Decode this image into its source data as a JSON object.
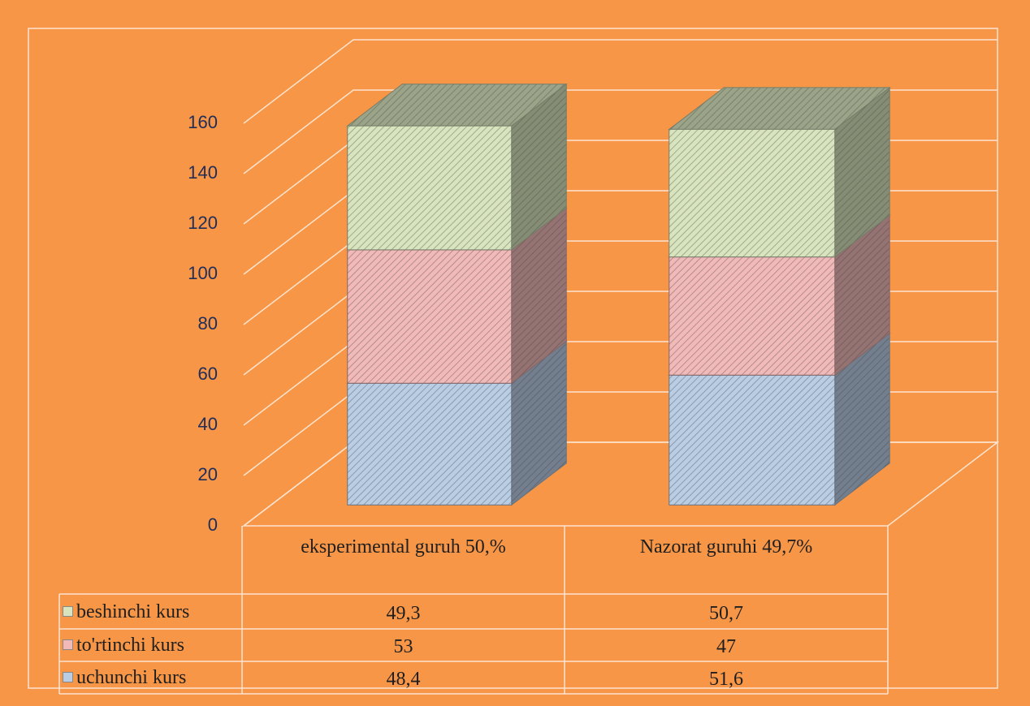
{
  "chart_data": {
    "type": "stacked-bar-3d",
    "categories": [
      "eksperimental guruh 50,%",
      "Nazorat guruhi 49,7%"
    ],
    "series": [
      {
        "name": "uchunchi kurs",
        "color": "#b9cde5",
        "values": [
          48.4,
          51.6
        ],
        "value_labels": [
          "48,4",
          "51,6"
        ]
      },
      {
        "name": "to'rtinchi kurs",
        "color": "#f2b9b9",
        "values": [
          53,
          47
        ],
        "value_labels": [
          "53",
          "47"
        ]
      },
      {
        "name": "beshinchi kurs",
        "color": "#d7e4bd",
        "values": [
          49.3,
          50.7
        ],
        "value_labels": [
          "49,3",
          "50,7"
        ]
      }
    ],
    "ylim": [
      0,
      160
    ],
    "yticks": [
      0,
      20,
      40,
      60,
      80,
      100,
      120,
      140,
      160
    ],
    "grid": true,
    "data_table": true
  }
}
